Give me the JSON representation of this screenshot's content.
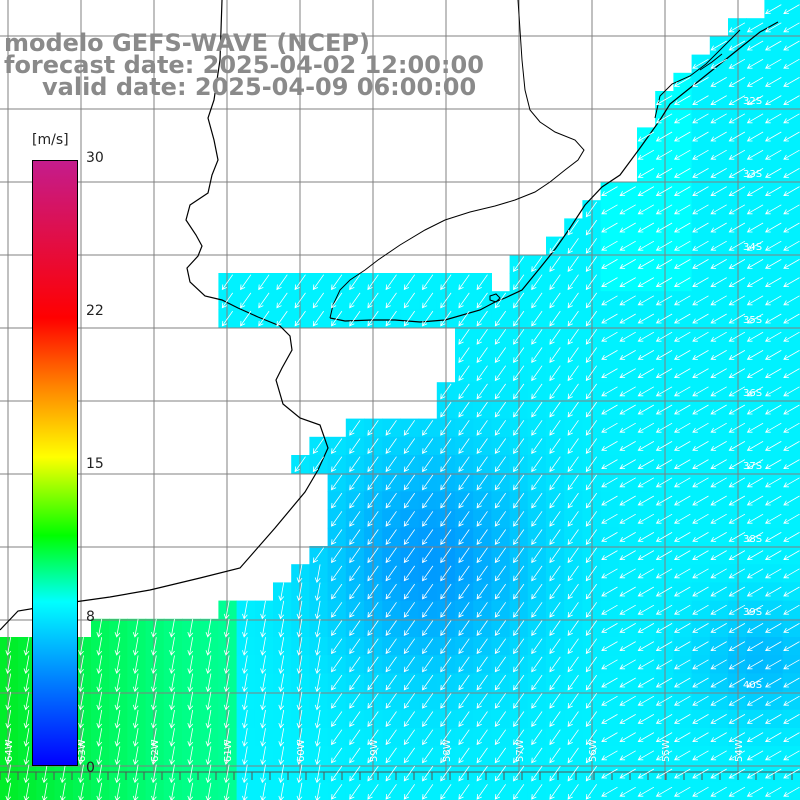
{
  "title": {
    "line1": "modelo GEFS-WAVE (NCEP)",
    "line2": "forecast date: 2025-04-02 12:00:00",
    "line3": "valid date: 2025-04-09 06:00:00"
  },
  "colorbar": {
    "unit": "[m/s]",
    "ticks": [
      "30",
      "22",
      "15",
      "8",
      "0"
    ],
    "min": 0,
    "max": 30
  },
  "lat_labels": [
    "32S",
    "33S",
    "34S",
    "35S",
    "36S",
    "37S",
    "38S",
    "39S",
    "40S"
  ],
  "lon_labels": [
    "64W",
    "63W",
    "62W",
    "61W",
    "60W",
    "59W",
    "58W",
    "57W",
    "56W",
    "55W",
    "54W"
  ],
  "colors": {
    "title_text": "#8a8a8a",
    "land": "#ffffff",
    "grid": "#808080",
    "coast": "#000000",
    "arrows": "#ffffff",
    "scale_0": "#0000ff",
    "scale_8": "#00ffff",
    "scale_15": "#ffff00",
    "scale_22": "#ff0000",
    "scale_30": "#c41c8c"
  }
}
